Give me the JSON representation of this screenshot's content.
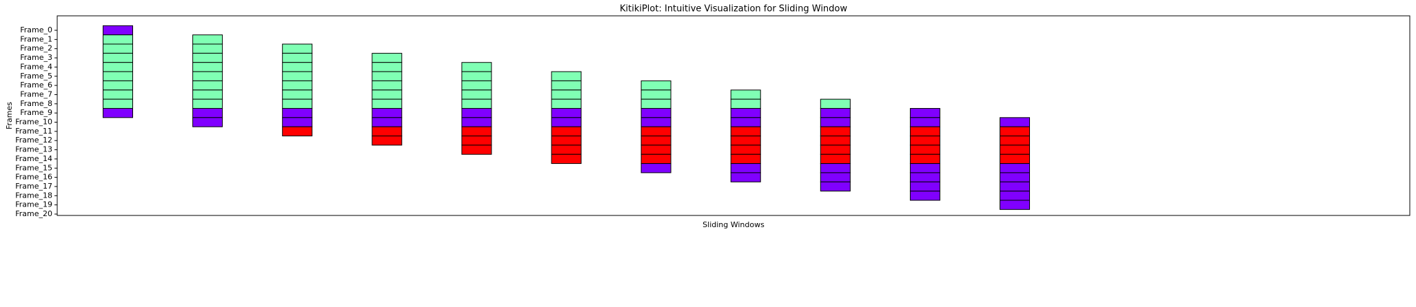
{
  "chart_data": {
    "type": "kitiki",
    "title": "KitikiPlot: Intuitive Visualization for Sliding Window",
    "xlabel": "Sliding Windows",
    "ylabel": "Frames",
    "categories": [
      "Frame_0",
      "Frame_1",
      "Frame_2",
      "Frame_3",
      "Frame_4",
      "Frame_5",
      "Frame_6",
      "Frame_7",
      "Frame_8",
      "Frame_9",
      "Frame_10",
      "Frame_11",
      "Frame_12",
      "Frame_13",
      "Frame_14",
      "Frame_15",
      "Frame_16",
      "Frame_17",
      "Frame_18",
      "Frame_19",
      "Frame_20"
    ],
    "windows": [
      [
        "#8000ff",
        "#80ffb4",
        "#80ffb4",
        "#80ffb4",
        "#80ffb4",
        "#80ffb4",
        "#80ffb4",
        "#80ffb4",
        "#80ffb4",
        "#8000ff"
      ],
      [
        "#80ffb4",
        "#80ffb4",
        "#80ffb4",
        "#80ffb4",
        "#80ffb4",
        "#80ffb4",
        "#80ffb4",
        "#80ffb4",
        "#8000ff",
        "#8000ff"
      ],
      [
        "#80ffb4",
        "#80ffb4",
        "#80ffb4",
        "#80ffb4",
        "#80ffb4",
        "#80ffb4",
        "#80ffb4",
        "#8000ff",
        "#8000ff",
        "#ff0000"
      ],
      [
        "#80ffb4",
        "#80ffb4",
        "#80ffb4",
        "#80ffb4",
        "#80ffb4",
        "#80ffb4",
        "#8000ff",
        "#8000ff",
        "#ff0000",
        "#ff0000"
      ],
      [
        "#80ffb4",
        "#80ffb4",
        "#80ffb4",
        "#80ffb4",
        "#80ffb4",
        "#8000ff",
        "#8000ff",
        "#ff0000",
        "#ff0000",
        "#ff0000"
      ],
      [
        "#80ffb4",
        "#80ffb4",
        "#80ffb4",
        "#80ffb4",
        "#8000ff",
        "#8000ff",
        "#ff0000",
        "#ff0000",
        "#ff0000",
        "#ff0000"
      ],
      [
        "#80ffb4",
        "#80ffb4",
        "#80ffb4",
        "#8000ff",
        "#8000ff",
        "#ff0000",
        "#ff0000",
        "#ff0000",
        "#ff0000",
        "#8000ff"
      ],
      [
        "#80ffb4",
        "#80ffb4",
        "#8000ff",
        "#8000ff",
        "#ff0000",
        "#ff0000",
        "#ff0000",
        "#ff0000",
        "#8000ff",
        "#8000ff"
      ],
      [
        "#80ffb4",
        "#8000ff",
        "#8000ff",
        "#ff0000",
        "#ff0000",
        "#ff0000",
        "#ff0000",
        "#8000ff",
        "#8000ff",
        "#8000ff"
      ],
      [
        "#8000ff",
        "#8000ff",
        "#ff0000",
        "#ff0000",
        "#ff0000",
        "#ff0000",
        "#8000ff",
        "#8000ff",
        "#8000ff",
        "#8000ff"
      ],
      [
        "#8000ff",
        "#ff0000",
        "#ff0000",
        "#ff0000",
        "#ff0000",
        "#8000ff",
        "#8000ff",
        "#8000ff",
        "#8000ff",
        "#8000ff"
      ]
    ]
  }
}
